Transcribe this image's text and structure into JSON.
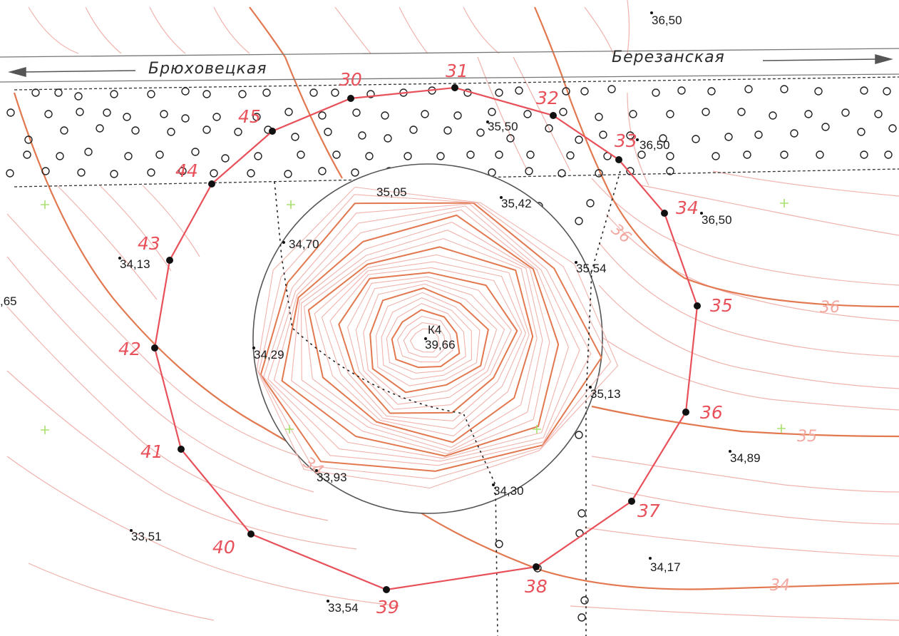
{
  "streets": {
    "left": "Брюховецкая",
    "right": "Березанская"
  },
  "boundary_points": [
    {
      "label": "30"
    },
    {
      "label": "31"
    },
    {
      "label": "32"
    },
    {
      "label": "33"
    },
    {
      "label": "34"
    },
    {
      "label": "35"
    },
    {
      "label": "36"
    },
    {
      "label": "37"
    },
    {
      "label": "38"
    },
    {
      "label": "39"
    },
    {
      "label": "40"
    },
    {
      "label": "41"
    },
    {
      "label": "42"
    },
    {
      "label": "43"
    },
    {
      "label": "44"
    },
    {
      "label": "45"
    }
  ],
  "elevations": [
    "36,50",
    "35,50",
    "36,50",
    "36,50",
    "35,05",
    "35,42",
    "34,70",
    "34,13",
    "35,54",
    ",65",
    "34,29",
    "35,13",
    "34,89",
    "33,93",
    "34,30",
    "33,51",
    "34,17",
    "33,54"
  ],
  "contour_labels": [
    "36",
    "36",
    "35",
    "34",
    "34"
  ],
  "well": {
    "name": "К4",
    "elevation": "39,66"
  },
  "colors": {
    "boundary": "#e8505a",
    "contour_major": "#e2784f",
    "contour_minor": "#f0b3ad",
    "grid_cross": "#a8e070",
    "text": "#1a1a1a"
  }
}
